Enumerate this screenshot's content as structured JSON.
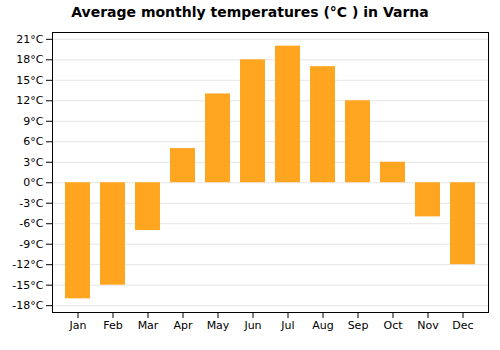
{
  "chart_data": {
    "type": "bar",
    "title": "Average monthly temperatures (°C ) in Varna",
    "categories": [
      "Jan",
      "Feb",
      "Mar",
      "Apr",
      "May",
      "Jun",
      "Jul",
      "Aug",
      "Sep",
      "Oct",
      "Nov",
      "Dec"
    ],
    "values": [
      -17,
      -15,
      -7,
      5,
      13,
      18,
      20,
      17,
      12,
      3,
      -5,
      -12
    ],
    "color": "#FFA520",
    "ylim": [
      -19,
      22
    ],
    "yticks": [
      {
        "value": -18,
        "label": "-18°C"
      },
      {
        "value": -15,
        "label": "-15°C"
      },
      {
        "value": -12,
        "label": "-12°C"
      },
      {
        "value": -9,
        "label": "-9°C"
      },
      {
        "value": -6,
        "label": "-6°C"
      },
      {
        "value": -3,
        "label": "-3°C"
      },
      {
        "value": 0,
        "label": "0°C"
      },
      {
        "value": 3,
        "label": "3°C"
      },
      {
        "value": 6,
        "label": "6°C"
      },
      {
        "value": 9,
        "label": "9°C"
      },
      {
        "value": 12,
        "label": "12°C"
      },
      {
        "value": 15,
        "label": "15°C"
      },
      {
        "value": 18,
        "label": "18°C"
      },
      {
        "value": 21,
        "label": "21°C"
      }
    ],
    "grid": true
  }
}
